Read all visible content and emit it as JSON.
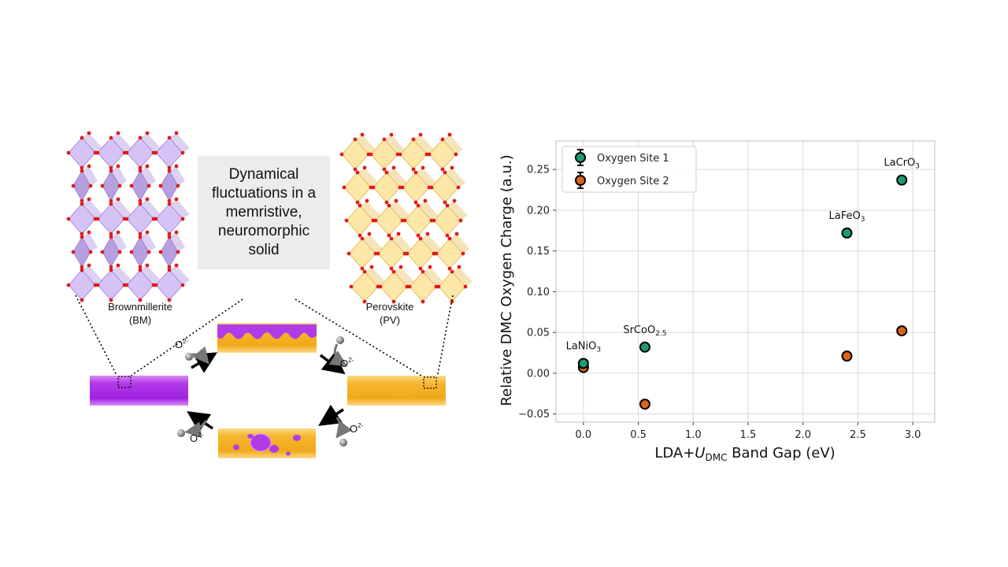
{
  "diagram": {
    "caption_lines": [
      "Dynamical",
      "fluctuations in a",
      "memristive,",
      "neuromorphic",
      "solid"
    ],
    "bm_label": [
      "Brownmillerite",
      "(BM)"
    ],
    "pv_label": [
      "Perovskite",
      "(PV)"
    ],
    "ion_label": "O",
    "ion_charge": "2-",
    "colors": {
      "bm_purple": "#b23be8",
      "pv_yellow": "#f5b731",
      "oxygen_red": "#e01b1b"
    }
  },
  "chart_data": {
    "type": "scatter",
    "title": "",
    "xlabel": "LDA+U_DMC Band Gap (eV)",
    "xlabel_parts": {
      "prefix": "LDA+",
      "italic": "U",
      "sub": "DMC",
      "suffix": " Band Gap (eV)"
    },
    "ylabel": "Relative DMC Oxygen Charge (a.u.)",
    "xlim": [
      -0.25,
      3.2
    ],
    "ylim": [
      -0.06,
      0.285
    ],
    "xticks": [
      0.0,
      0.5,
      1.0,
      1.5,
      2.0,
      2.5,
      3.0
    ],
    "xtick_labels": [
      "0.0",
      "0.5",
      "1.0",
      "1.5",
      "2.0",
      "2.5",
      "3.0"
    ],
    "yticks": [
      -0.05,
      0.0,
      0.05,
      0.1,
      0.15,
      0.2,
      0.25
    ],
    "ytick_labels": [
      "−0.05",
      "0.00",
      "0.05",
      "0.10",
      "0.15",
      "0.20",
      "0.25"
    ],
    "grid": true,
    "legend_position": "top-left",
    "series": [
      {
        "name": "Oxygen Site 1",
        "color": "#1a9a75",
        "points": [
          {
            "x": 0.0,
            "y": 0.012
          },
          {
            "x": 0.56,
            "y": 0.032
          },
          {
            "x": 2.4,
            "y": 0.172
          },
          {
            "x": 2.9,
            "y": 0.237
          }
        ]
      },
      {
        "name": "Oxygen Site 2",
        "color": "#d9631a",
        "points": [
          {
            "x": 0.0,
            "y": 0.007
          },
          {
            "x": 0.56,
            "y": -0.038
          },
          {
            "x": 2.4,
            "y": 0.021
          },
          {
            "x": 2.9,
            "y": 0.052
          }
        ]
      }
    ],
    "annotations": [
      {
        "base": "LaNiO",
        "sub": "3",
        "x": 0.0,
        "y": 0.012
      },
      {
        "base": "SrCoO",
        "sub": "2.5",
        "x": 0.56,
        "y": 0.032
      },
      {
        "base": "LaFeO",
        "sub": "3",
        "x": 2.4,
        "y": 0.172
      },
      {
        "base": "LaCrO",
        "sub": "3",
        "x": 2.9,
        "y": 0.237
      }
    ]
  }
}
